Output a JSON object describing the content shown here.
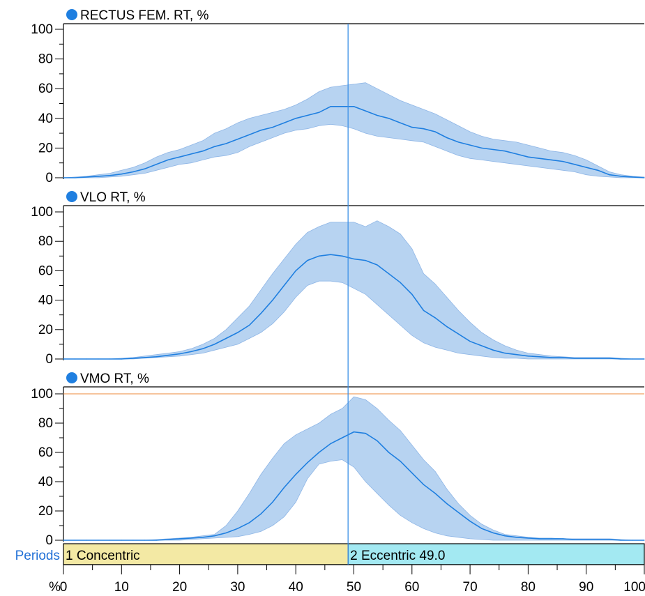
{
  "colors": {
    "series_line": "#1f7fe0",
    "band_fill": "#aacbef",
    "band_edge": "#8fb6e6",
    "cursor_line": "#3b8fe6",
    "reference_line": "#f0a060",
    "title_dot": "#1f7fe0",
    "period_concentric_fill": "#f3e9a4",
    "period_eccentric_fill": "#a3e9f2",
    "periods_label_color": "#1f6fd6"
  },
  "x_axis": {
    "unit_label": "%",
    "ticks": [
      "0",
      "10",
      "20",
      "30",
      "40",
      "50",
      "60",
      "70",
      "80",
      "90",
      "100"
    ],
    "range": [
      0,
      100
    ]
  },
  "cursor_x": 49,
  "periods": {
    "label": "Periods",
    "items": [
      {
        "text": "1 Concentric",
        "start": 0,
        "end": 49
      },
      {
        "text": "2 Eccentric 49.0",
        "start": 49,
        "end": 100
      }
    ]
  },
  "chart_data": [
    {
      "type": "line",
      "title": "RECTUS FEM. RT, %",
      "ylim": [
        0,
        100
      ],
      "yticks": [
        "0",
        "20",
        "40",
        "60",
        "80",
        "100"
      ],
      "reference_line": null,
      "x": [
        0,
        2,
        4,
        6,
        8,
        10,
        12,
        14,
        16,
        18,
        20,
        22,
        24,
        26,
        28,
        30,
        32,
        34,
        36,
        38,
        40,
        42,
        44,
        46,
        48,
        50,
        52,
        54,
        56,
        58,
        60,
        62,
        64,
        66,
        68,
        70,
        72,
        74,
        76,
        78,
        80,
        82,
        84,
        86,
        88,
        90,
        92,
        94,
        96,
        98,
        100
      ],
      "mean": [
        0,
        0,
        0.5,
        1,
        1.5,
        2.5,
        4,
        6,
        9,
        12,
        14,
        16,
        18,
        21,
        23,
        26,
        29,
        32,
        34,
        37,
        40,
        42,
        44,
        48,
        48,
        48,
        45,
        42,
        40,
        37,
        34,
        33,
        31,
        27,
        24,
        22,
        20,
        19,
        18,
        16,
        14,
        13,
        12,
        11,
        9,
        7,
        5,
        2,
        1,
        0.5,
        0
      ],
      "upper": [
        0,
        0.5,
        1,
        2,
        3,
        5,
        7,
        10,
        14,
        17,
        19,
        22,
        25,
        30,
        33,
        37,
        40,
        42,
        44,
        46,
        49,
        53,
        58,
        61,
        62,
        63,
        64,
        60,
        56,
        52,
        49,
        46,
        43,
        39,
        35,
        31,
        28,
        26,
        25,
        24,
        22,
        20,
        18,
        17,
        15,
        12,
        8,
        4,
        2,
        1,
        0.5
      ],
      "lower": [
        0,
        0,
        0,
        0,
        0.5,
        1,
        2,
        3,
        5,
        7,
        9,
        10,
        12,
        14,
        15,
        17,
        21,
        24,
        27,
        30,
        32,
        33,
        35,
        36,
        35,
        33,
        30,
        28,
        27,
        26,
        25,
        24,
        21,
        18,
        15,
        13,
        12,
        11,
        10,
        9,
        8,
        7,
        6,
        5,
        4,
        2,
        1,
        0.5,
        0,
        0,
        0
      ]
    },
    {
      "type": "line",
      "title": "VLO RT, %",
      "ylim": [
        0,
        100
      ],
      "yticks": [
        "0",
        "20",
        "40",
        "60",
        "80",
        "100"
      ],
      "reference_line": null,
      "x": [
        0,
        2,
        4,
        6,
        8,
        10,
        12,
        14,
        16,
        18,
        20,
        22,
        24,
        26,
        28,
        30,
        32,
        34,
        36,
        38,
        40,
        42,
        44,
        46,
        48,
        50,
        52,
        54,
        56,
        58,
        60,
        62,
        64,
        66,
        68,
        70,
        72,
        74,
        76,
        78,
        80,
        82,
        84,
        86,
        88,
        90,
        92,
        94,
        96,
        98,
        100
      ],
      "mean": [
        0,
        0,
        0,
        0,
        0,
        0,
        0.5,
        1,
        1.5,
        2.5,
        3.5,
        5,
        7,
        10,
        14,
        18,
        23,
        31,
        40,
        50,
        60,
        67,
        70,
        71,
        70,
        68,
        67,
        64,
        58,
        52,
        44,
        33,
        28,
        22,
        17,
        12,
        9,
        6,
        4,
        3,
        2,
        1.5,
        1,
        1,
        0.5,
        0.5,
        0.5,
        0.5,
        0,
        0,
        0
      ],
      "upper": [
        0,
        0,
        0,
        0,
        0,
        0.5,
        1,
        2,
        3,
        4,
        5,
        7,
        10,
        14,
        20,
        28,
        36,
        47,
        58,
        68,
        78,
        86,
        90,
        93,
        93,
        93,
        90,
        94,
        90,
        85,
        75,
        58,
        51,
        42,
        33,
        25,
        18,
        13,
        9,
        6,
        4,
        3,
        2,
        1.5,
        1,
        1,
        1,
        1,
        0.5,
        0,
        0
      ],
      "lower": [
        0,
        0,
        0,
        0,
        0,
        0,
        0,
        0.5,
        1,
        1.5,
        2,
        3,
        4,
        6,
        8,
        10,
        14,
        18,
        24,
        32,
        42,
        50,
        53,
        53,
        52,
        48,
        44,
        37,
        30,
        23,
        16,
        11,
        8,
        6,
        4,
        3,
        2,
        1,
        0.5,
        0.5,
        0,
        0,
        0,
        0,
        0,
        0,
        0,
        0,
        0,
        0,
        0
      ]
    },
    {
      "type": "line",
      "title": "VMO RT, %",
      "ylim": [
        0,
        100
      ],
      "yticks": [
        "0",
        "20",
        "40",
        "60",
        "80",
        "100"
      ],
      "reference_line": 100,
      "x": [
        0,
        2,
        4,
        6,
        8,
        10,
        12,
        14,
        16,
        18,
        20,
        22,
        24,
        26,
        28,
        30,
        32,
        34,
        36,
        38,
        40,
        42,
        44,
        46,
        48,
        50,
        52,
        54,
        56,
        58,
        60,
        62,
        64,
        66,
        68,
        70,
        72,
        74,
        76,
        78,
        80,
        82,
        84,
        86,
        88,
        90,
        92,
        94,
        96,
        98,
        100
      ],
      "mean": [
        0,
        0,
        0,
        0,
        0,
        0,
        0,
        0,
        0,
        0.5,
        1,
        1.5,
        2,
        3,
        5,
        8,
        12,
        18,
        26,
        36,
        45,
        53,
        60,
        66,
        70,
        74,
        73,
        68,
        60,
        54,
        46,
        38,
        32,
        25,
        19,
        13,
        8,
        5,
        3,
        2,
        1.5,
        1,
        1,
        1,
        0.5,
        0.5,
        0.5,
        0.5,
        0,
        0,
        0
      ],
      "upper": [
        0,
        0,
        0,
        0,
        0,
        0,
        0,
        0,
        0.5,
        1,
        1.5,
        2,
        3,
        4,
        10,
        20,
        32,
        45,
        56,
        66,
        72,
        76,
        80,
        86,
        90,
        98,
        96,
        90,
        82,
        75,
        65,
        55,
        47,
        35,
        25,
        17,
        11,
        7,
        4,
        3,
        2,
        1.5,
        1.5,
        1,
        1,
        1,
        1,
        1,
        0.5,
        0,
        0
      ],
      "lower": [
        0,
        0,
        0,
        0,
        0,
        0,
        0,
        0,
        0,
        0,
        0,
        0.5,
        1,
        1.5,
        2,
        2.5,
        4,
        6,
        10,
        16,
        26,
        42,
        52,
        54,
        55,
        50,
        40,
        32,
        24,
        17,
        12,
        8,
        5,
        3,
        2,
        1,
        0.5,
        0,
        0,
        0,
        0,
        0,
        0,
        0,
        0,
        0,
        0,
        0,
        0,
        0,
        0
      ]
    }
  ]
}
